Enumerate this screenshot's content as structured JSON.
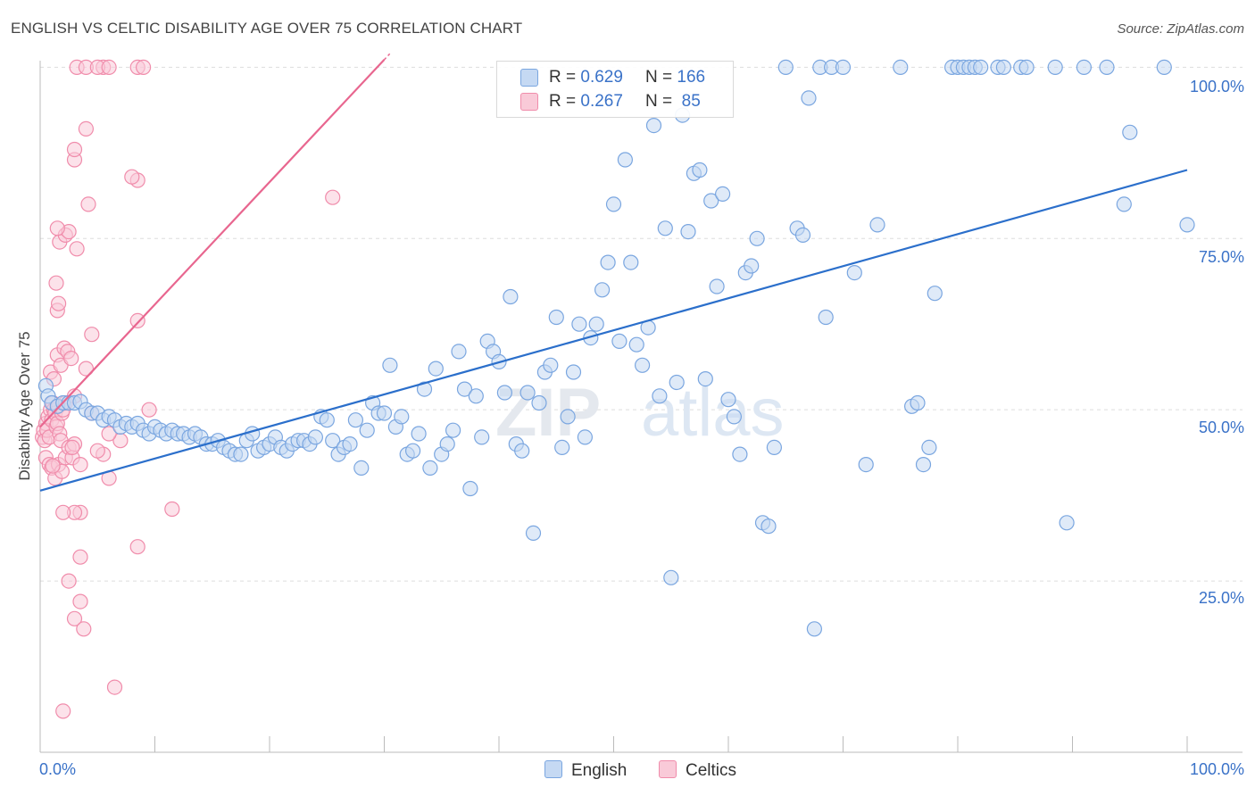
{
  "header": {
    "title": "ENGLISH VS CELTIC DISABILITY AGE OVER 75 CORRELATION CHART",
    "source": "Source: ZipAtlas.com"
  },
  "legend": {
    "english": {
      "r_label": "R =",
      "r_value": "0.629",
      "n_label": "N =",
      "n_value": "166"
    },
    "celtics": {
      "r_label": "R =",
      "r_value": "0.267",
      "n_label": "N =",
      "n_value": "85"
    }
  },
  "watermark": {
    "zip": "ZIP",
    "atlas": "atlas"
  },
  "colors": {
    "english": "#7aa6e0",
    "english_fill": "#c5d9f3",
    "english_line": "#2b6fcb",
    "celtics": "#f08cab",
    "celtics_fill": "#f9cad8",
    "celtics_line": "#e8668f",
    "tick_text": "#3a72c8",
    "grid": "#dddddd"
  },
  "chart_data": {
    "type": "scatter",
    "title": "ENGLISH VS CELTIC DISABILITY AGE OVER 75 CORRELATION CHART",
    "ylabel": "Disability Age Over 75",
    "xlabel": "",
    "xlim": [
      0,
      100
    ],
    "ylim": [
      0,
      102
    ],
    "x_ticks": [
      "0.0%",
      "100.0%"
    ],
    "y_ticks": [
      {
        "value": 25,
        "label": "25.0%"
      },
      {
        "value": 50,
        "label": "50.0%"
      },
      {
        "value": 75,
        "label": "75.0%"
      },
      {
        "value": 100,
        "label": "100.0%"
      }
    ],
    "grid": "horizontal dashed",
    "legend_position": "top-center",
    "series": [
      {
        "name": "English",
        "r": 0.629,
        "n": 166,
        "trendline": {
          "x": [
            0,
            100
          ],
          "y": [
            38.2,
            85.0
          ]
        },
        "points": [
          [
            0.5,
            53.5
          ],
          [
            0.7,
            52.0
          ],
          [
            1.0,
            51.0
          ],
          [
            1.5,
            50.5
          ],
          [
            2.0,
            51.0
          ],
          [
            2.5,
            51.0
          ],
          [
            3.0,
            51.0
          ],
          [
            3.5,
            51.2
          ],
          [
            4.0,
            50.0
          ],
          [
            4.5,
            49.5
          ],
          [
            5.0,
            49.5
          ],
          [
            5.5,
            48.5
          ],
          [
            6.0,
            49.0
          ],
          [
            6.5,
            48.5
          ],
          [
            7.0,
            47.5
          ],
          [
            7.5,
            48.0
          ],
          [
            8.0,
            47.5
          ],
          [
            8.5,
            48.0
          ],
          [
            9.0,
            47.0
          ],
          [
            9.5,
            46.5
          ],
          [
            10.0,
            47.5
          ],
          [
            10.5,
            47.0
          ],
          [
            11.0,
            46.5
          ],
          [
            11.5,
            47.0
          ],
          [
            12.0,
            46.5
          ],
          [
            12.5,
            46.5
          ],
          [
            13.0,
            46.0
          ],
          [
            13.5,
            46.5
          ],
          [
            14.0,
            46.0
          ],
          [
            14.5,
            45.0
          ],
          [
            15.0,
            45.0
          ],
          [
            15.5,
            45.5
          ],
          [
            16.0,
            44.5
          ],
          [
            16.5,
            44.0
          ],
          [
            17.0,
            43.5
          ],
          [
            17.5,
            43.5
          ],
          [
            18.0,
            45.5
          ],
          [
            18.5,
            46.5
          ],
          [
            19.0,
            44.0
          ],
          [
            19.5,
            44.5
          ],
          [
            20.0,
            45.0
          ],
          [
            20.5,
            46.0
          ],
          [
            21.0,
            44.5
          ],
          [
            21.5,
            44.0
          ],
          [
            22.0,
            45.0
          ],
          [
            22.5,
            45.5
          ],
          [
            23.0,
            45.5
          ],
          [
            23.5,
            45.0
          ],
          [
            24.0,
            46.0
          ],
          [
            24.5,
            49.0
          ],
          [
            25.0,
            48.5
          ],
          [
            25.5,
            45.5
          ],
          [
            26.0,
            43.5
          ],
          [
            26.5,
            44.5
          ],
          [
            27.0,
            45.0
          ],
          [
            27.5,
            48.5
          ],
          [
            28.0,
            41.5
          ],
          [
            28.5,
            47.0
          ],
          [
            29.0,
            51.0
          ],
          [
            29.5,
            49.5
          ],
          [
            30.0,
            49.5
          ],
          [
            30.5,
            56.5
          ],
          [
            31.0,
            47.5
          ],
          [
            31.5,
            49.0
          ],
          [
            32.0,
            43.5
          ],
          [
            32.5,
            44.0
          ],
          [
            33.0,
            46.5
          ],
          [
            33.5,
            53.0
          ],
          [
            34.0,
            41.5
          ],
          [
            34.5,
            56.0
          ],
          [
            35.0,
            43.5
          ],
          [
            35.5,
            45.0
          ],
          [
            36.0,
            47.0
          ],
          [
            36.5,
            58.5
          ],
          [
            37.0,
            53.0
          ],
          [
            37.5,
            38.5
          ],
          [
            38.0,
            52.0
          ],
          [
            38.5,
            46.0
          ],
          [
            39.0,
            60.0
          ],
          [
            39.5,
            58.5
          ],
          [
            40.0,
            57.0
          ],
          [
            40.5,
            52.5
          ],
          [
            41.0,
            66.5
          ],
          [
            41.5,
            45.0
          ],
          [
            42.0,
            44.0
          ],
          [
            42.5,
            52.5
          ],
          [
            43.0,
            32.0
          ],
          [
            43.5,
            51.0
          ],
          [
            44.0,
            55.5
          ],
          [
            44.5,
            56.5
          ],
          [
            45.0,
            63.5
          ],
          [
            45.5,
            44.5
          ],
          [
            46.0,
            49.0
          ],
          [
            46.5,
            55.5
          ],
          [
            47.0,
            62.5
          ],
          [
            47.5,
            46.0
          ],
          [
            48.0,
            60.5
          ],
          [
            48.5,
            62.5
          ],
          [
            49.0,
            67.5
          ],
          [
            49.5,
            71.5
          ],
          [
            50.0,
            80.0
          ],
          [
            50.5,
            60.0
          ],
          [
            51.0,
            86.5
          ],
          [
            51.5,
            71.5
          ],
          [
            52.0,
            59.5
          ],
          [
            52.5,
            56.5
          ],
          [
            53.0,
            62.0
          ],
          [
            53.5,
            91.5
          ],
          [
            54.0,
            52.0
          ],
          [
            54.5,
            76.5
          ],
          [
            55.0,
            25.5
          ],
          [
            55.5,
            54.0
          ],
          [
            56.0,
            93.0
          ],
          [
            56.5,
            76.0
          ],
          [
            57.0,
            84.5
          ],
          [
            57.5,
            85.0
          ],
          [
            58.0,
            54.5
          ],
          [
            58.5,
            80.5
          ],
          [
            59.0,
            68.0
          ],
          [
            59.5,
            81.5
          ],
          [
            60.0,
            51.5
          ],
          [
            60.5,
            49.0
          ],
          [
            61.0,
            43.5
          ],
          [
            61.5,
            70.0
          ],
          [
            62.0,
            71.0
          ],
          [
            62.5,
            75.0
          ],
          [
            63.0,
            33.5
          ],
          [
            63.5,
            33.0
          ],
          [
            64.0,
            44.5
          ],
          [
            65.0,
            100.0
          ],
          [
            66.0,
            76.5
          ],
          [
            66.5,
            75.5
          ],
          [
            67.0,
            95.5
          ],
          [
            67.5,
            18.0
          ],
          [
            68.0,
            100.0
          ],
          [
            68.5,
            63.5
          ],
          [
            69.0,
            100.0
          ],
          [
            70.0,
            100.0
          ],
          [
            71.0,
            70.0
          ],
          [
            72.0,
            42.0
          ],
          [
            73.0,
            77.0
          ],
          [
            75.0,
            100.0
          ],
          [
            76.0,
            50.5
          ],
          [
            76.5,
            51.0
          ],
          [
            77.0,
            42.0
          ],
          [
            77.5,
            44.5
          ],
          [
            78.0,
            67.0
          ],
          [
            79.5,
            100.0
          ],
          [
            80.0,
            100.0
          ],
          [
            80.5,
            100.0
          ],
          [
            81.0,
            100.0
          ],
          [
            81.5,
            100.0
          ],
          [
            82.0,
            100.0
          ],
          [
            83.5,
            100.0
          ],
          [
            84.0,
            100.0
          ],
          [
            85.5,
            100.0
          ],
          [
            86.0,
            100.0
          ],
          [
            88.5,
            100.0
          ],
          [
            89.5,
            33.5
          ],
          [
            91.0,
            100.0
          ],
          [
            93.0,
            100.0
          ],
          [
            94.5,
            80.0
          ],
          [
            95.0,
            90.5
          ],
          [
            98.0,
            100.0
          ],
          [
            100.0,
            77.0
          ]
        ]
      },
      {
        "name": "Celtics",
        "r": 0.267,
        "n": 85,
        "trendline": {
          "x": [
            0,
            30.5
          ],
          "y": [
            47.5,
            102.0
          ]
        },
        "points": [
          [
            0.2,
            46.0
          ],
          [
            0.3,
            47.0
          ],
          [
            0.4,
            45.5
          ],
          [
            0.5,
            48.0
          ],
          [
            0.6,
            47.0
          ],
          [
            0.7,
            49.0
          ],
          [
            0.8,
            46.0
          ],
          [
            0.9,
            50.0
          ],
          [
            1.0,
            48.5
          ],
          [
            1.1,
            51.0
          ],
          [
            1.2,
            50.0
          ],
          [
            1.3,
            49.5
          ],
          [
            1.4,
            47.5
          ],
          [
            1.5,
            48.0
          ],
          [
            1.6,
            50.5
          ],
          [
            1.7,
            46.5
          ],
          [
            1.8,
            45.5
          ],
          [
            1.9,
            49.5
          ],
          [
            2.0,
            50.0
          ],
          [
            2.2,
            51.0
          ],
          [
            0.5,
            43.0
          ],
          [
            0.8,
            42.0
          ],
          [
            1.0,
            41.5
          ],
          [
            1.3,
            40.0
          ],
          [
            1.6,
            42.0
          ],
          [
            1.9,
            41.0
          ],
          [
            2.2,
            43.0
          ],
          [
            2.5,
            44.5
          ],
          [
            2.8,
            43.0
          ],
          [
            3.0,
            45.0
          ],
          [
            0.9,
            55.5
          ],
          [
            1.2,
            54.5
          ],
          [
            1.5,
            58.0
          ],
          [
            1.8,
            56.5
          ],
          [
            2.1,
            59.0
          ],
          [
            2.4,
            58.5
          ],
          [
            2.7,
            57.5
          ],
          [
            3.0,
            52.0
          ],
          [
            4.0,
            56.0
          ],
          [
            4.5,
            61.0
          ],
          [
            1.5,
            64.5
          ],
          [
            1.6,
            65.5
          ],
          [
            1.4,
            68.5
          ],
          [
            1.7,
            74.5
          ],
          [
            2.2,
            75.5
          ],
          [
            2.5,
            76.0
          ],
          [
            3.2,
            73.5
          ],
          [
            1.5,
            76.5
          ],
          [
            4.2,
            80.0
          ],
          [
            8.5,
            83.5
          ],
          [
            3.0,
            86.5
          ],
          [
            3.0,
            88.0
          ],
          [
            4.0,
            91.0
          ],
          [
            8.0,
            84.0
          ],
          [
            25.5,
            81.0
          ],
          [
            8.5,
            63.0
          ],
          [
            9.5,
            50.0
          ],
          [
            3.5,
            35.0
          ],
          [
            3.0,
            35.0
          ],
          [
            2.0,
            35.0
          ],
          [
            2.5,
            25.0
          ],
          [
            3.5,
            28.5
          ],
          [
            3.5,
            22.0
          ],
          [
            3.0,
            19.5
          ],
          [
            3.8,
            18.0
          ],
          [
            2.0,
            6.0
          ],
          [
            6.5,
            9.5
          ],
          [
            8.5,
            30.0
          ],
          [
            11.5,
            35.5
          ],
          [
            6.0,
            40.0
          ],
          [
            3.2,
            100.0
          ],
          [
            4.0,
            100.0
          ],
          [
            5.5,
            100.0
          ],
          [
            5.0,
            100.0
          ],
          [
            6.0,
            100.0
          ],
          [
            8.5,
            100.0
          ],
          [
            9.0,
            100.0
          ],
          [
            5.5,
            43.5
          ],
          [
            7.0,
            45.5
          ],
          [
            4.5,
            49.5
          ],
          [
            6.0,
            46.5
          ],
          [
            3.5,
            42.0
          ],
          [
            5.0,
            44.0
          ],
          [
            2.8,
            44.5
          ],
          [
            1.1,
            41.8
          ]
        ]
      }
    ]
  }
}
